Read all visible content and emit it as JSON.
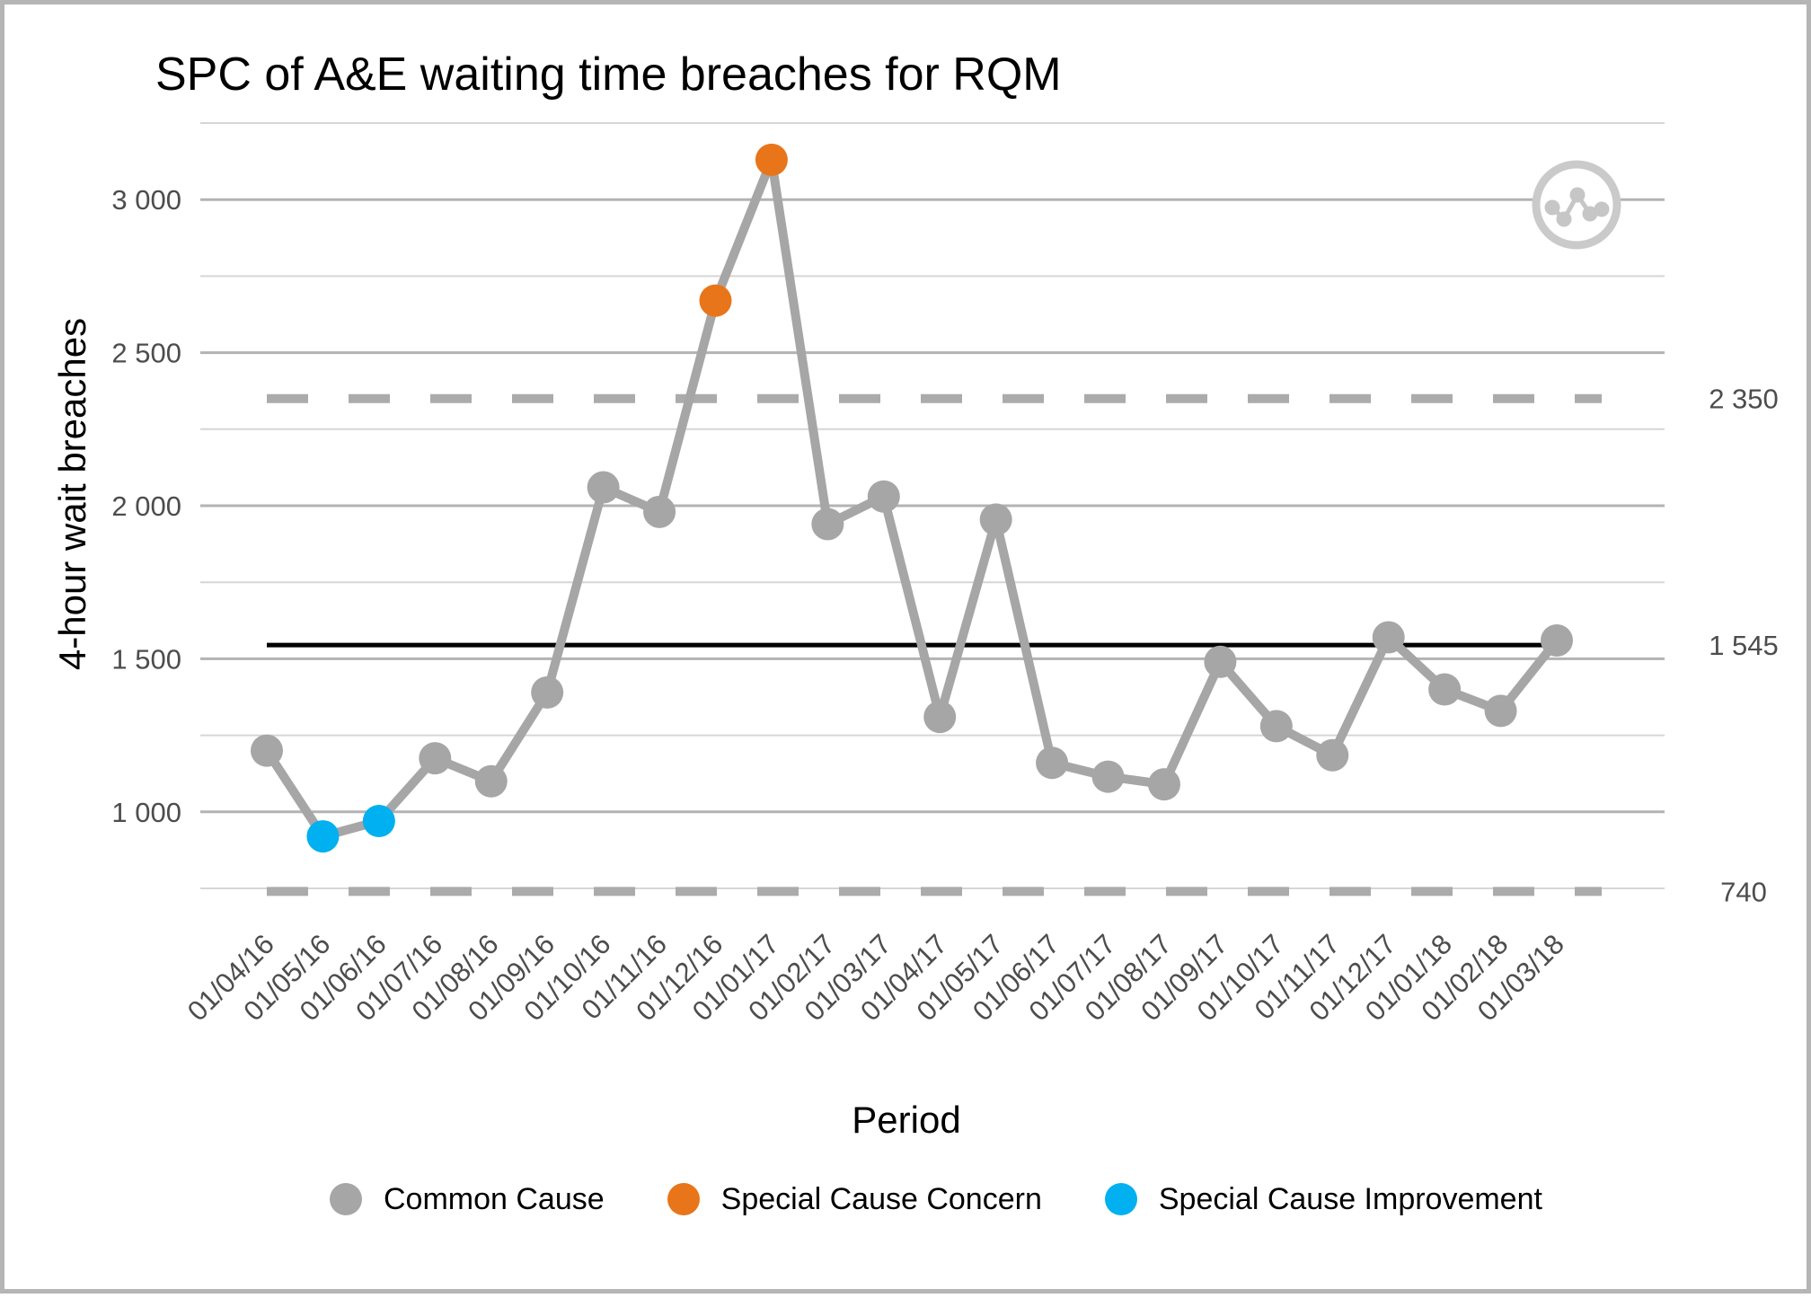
{
  "frame": {
    "border_color": "#b5b5b5",
    "background": "#ffffff"
  },
  "chart_data": {
    "type": "line",
    "title": "SPC of A&E waiting time breaches for RQM",
    "xlabel": "Period",
    "ylabel": "4-hour wait breaches",
    "x_tick_labels": [
      "01/04/16",
      "01/05/16",
      "01/06/16",
      "01/07/16",
      "01/08/16",
      "01/09/16",
      "01/10/16",
      "01/11/16",
      "01/12/16",
      "01/01/17",
      "01/02/17",
      "01/03/17",
      "01/04/17",
      "01/05/17",
      "01/06/17",
      "01/07/17",
      "01/08/17",
      "01/09/17",
      "01/10/17",
      "01/11/17",
      "01/12/17",
      "01/01/18",
      "01/02/18",
      "01/03/18"
    ],
    "series": [
      {
        "name": "4-hour wait breaches",
        "values": [
          1200,
          920,
          970,
          1175,
          1100,
          1390,
          2060,
          1980,
          2670,
          3130,
          1940,
          2030,
          1310,
          1955,
          1160,
          1115,
          1090,
          1490,
          1280,
          1185,
          1570,
          1400,
          1330,
          1560
        ],
        "point_states": [
          "common",
          "improvement",
          "improvement",
          "common",
          "common",
          "common",
          "common",
          "common",
          "concern",
          "concern",
          "common",
          "common",
          "common",
          "common",
          "common",
          "common",
          "common",
          "common",
          "common",
          "common",
          "common",
          "common",
          "common",
          "common"
        ]
      }
    ],
    "control_lines": {
      "mean": 1545,
      "mean_label": "1 545",
      "ucl": 2350,
      "ucl_label": "2 350",
      "lcl": 740,
      "lcl_label": "740"
    },
    "y_ticks": [
      {
        "value": 3000,
        "label": "3 000"
      },
      {
        "value": 2500,
        "label": "2 500"
      },
      {
        "value": 2000,
        "label": "2 000"
      },
      {
        "value": 1500,
        "label": "1 500"
      },
      {
        "value": 1000,
        "label": "1 000"
      }
    ],
    "y_gridline_step": 250,
    "ylim": [
      700,
      3300
    ],
    "grid": true,
    "legend_position": "bottom",
    "legend": [
      {
        "label": "Common Cause",
        "state": "common",
        "color": "#a6a6a6"
      },
      {
        "label": "Special Cause Concern",
        "state": "concern",
        "color": "#e8751a"
      },
      {
        "label": "Special Cause Improvement",
        "state": "improvement",
        "color": "#00b0f0"
      }
    ],
    "colors": {
      "common": "#a6a6a6",
      "concern": "#e8751a",
      "improvement": "#00b0f0",
      "line": "#a6a6a6",
      "mean_line": "#000000",
      "limit_line": "#ababab",
      "grid_major": "#b3b3b3",
      "grid_minor": "#d6d6d6",
      "tick_text": "#4d4d4d"
    },
    "decorations": {
      "corner_icon": "spc-variation-icon"
    }
  }
}
